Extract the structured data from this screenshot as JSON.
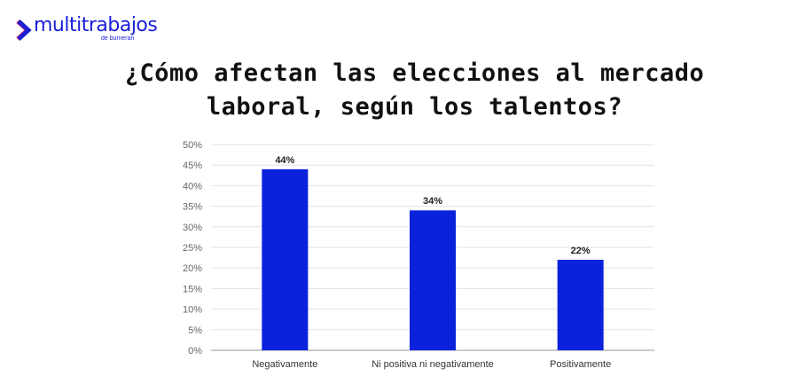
{
  "logo": {
    "name": "multitrabajos",
    "sub": "de bumeran"
  },
  "chart_data": {
    "type": "bar",
    "title": [
      "¿Cómo afectan las elecciones al mercado",
      "laboral, según los talentos?"
    ],
    "categories": [
      "Negativamente",
      "Ni positiva ni negativamente",
      "Positivamente"
    ],
    "values": [
      44,
      34,
      22
    ],
    "data_labels": [
      "44%",
      "34%",
      "22%"
    ],
    "ylim": [
      0,
      50
    ],
    "yticks": [
      "0%",
      "5%",
      "10%",
      "15%",
      "20%",
      "25%",
      "30%",
      "35%",
      "40%",
      "45%",
      "50%"
    ],
    "grid": true,
    "bar_color": "#0a22dc"
  }
}
